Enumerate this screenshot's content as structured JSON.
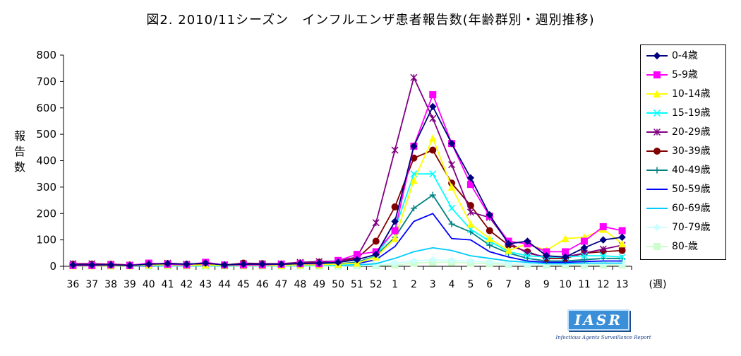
{
  "chart_data": {
    "type": "line",
    "title": "図2. 2010/11シーズン　インフルエンザ患者報告数(年齢群別・週別推移)",
    "ylabel": "報告数",
    "xlabel": "(週)",
    "ylim": [
      0,
      800
    ],
    "yticks": [
      0,
      100,
      200,
      300,
      400,
      500,
      600,
      700,
      800
    ],
    "categories": [
      "36",
      "37",
      "38",
      "39",
      "40",
      "41",
      "42",
      "43",
      "44",
      "45",
      "46",
      "47",
      "48",
      "49",
      "50",
      "51",
      "52",
      "1",
      "2",
      "3",
      "4",
      "5",
      "6",
      "7",
      "8",
      "9",
      "10",
      "11",
      "12",
      "13"
    ],
    "grid": false,
    "legend_position": "right",
    "series": [
      {
        "name": "0-4歳",
        "color": "#000080",
        "marker": "diamond",
        "values": [
          5,
          5,
          5,
          3,
          8,
          10,
          8,
          12,
          5,
          8,
          8,
          8,
          10,
          12,
          15,
          25,
          45,
          170,
          455,
          605,
          465,
          335,
          195,
          85,
          95,
          40,
          35,
          70,
          100,
          110
        ]
      },
      {
        "name": "5-9歳",
        "color": "#ff00ff",
        "marker": "square",
        "values": [
          3,
          3,
          5,
          3,
          12,
          8,
          5,
          15,
          5,
          5,
          5,
          8,
          10,
          10,
          22,
          45,
          55,
          135,
          455,
          650,
          465,
          310,
          190,
          95,
          85,
          55,
          55,
          95,
          150,
          135
        ]
      },
      {
        "name": "10-14歳",
        "color": "#ffff00",
        "marker": "triangle",
        "values": [
          2,
          2,
          2,
          2,
          5,
          5,
          3,
          5,
          3,
          3,
          3,
          3,
          5,
          5,
          8,
          12,
          35,
          105,
          325,
          485,
          300,
          160,
          105,
          60,
          85,
          60,
          105,
          110,
          140,
          85
        ]
      },
      {
        "name": "15-19歳",
        "color": "#00ffff",
        "marker": "x",
        "values": [
          2,
          2,
          2,
          2,
          3,
          3,
          2,
          3,
          2,
          2,
          2,
          2,
          3,
          3,
          5,
          10,
          40,
          140,
          350,
          350,
          220,
          140,
          95,
          55,
          40,
          35,
          35,
          40,
          40,
          35
        ]
      },
      {
        "name": "20-29歳",
        "color": "#800080",
        "marker": "star",
        "values": [
          10,
          10,
          8,
          5,
          8,
          12,
          8,
          12,
          5,
          10,
          10,
          10,
          15,
          18,
          20,
          35,
          165,
          440,
          715,
          560,
          385,
          205,
          185,
          90,
          50,
          35,
          35,
          50,
          65,
          80
        ]
      },
      {
        "name": "30-39歳",
        "color": "#800000",
        "marker": "circle",
        "values": [
          8,
          8,
          8,
          5,
          8,
          10,
          8,
          10,
          5,
          12,
          10,
          8,
          12,
          15,
          20,
          30,
          95,
          225,
          410,
          440,
          315,
          230,
          135,
          80,
          55,
          30,
          30,
          50,
          55,
          60
        ]
      },
      {
        "name": "40-49歳",
        "color": "#008080",
        "marker": "plus",
        "values": [
          3,
          3,
          3,
          3,
          3,
          5,
          3,
          5,
          3,
          5,
          5,
          5,
          5,
          8,
          10,
          15,
          40,
          110,
          220,
          270,
          160,
          130,
          80,
          50,
          30,
          20,
          20,
          25,
          30,
          30
        ]
      },
      {
        "name": "50-59歳",
        "color": "#0000ff",
        "marker": "none",
        "values": [
          2,
          2,
          2,
          2,
          2,
          3,
          2,
          3,
          2,
          3,
          3,
          3,
          3,
          5,
          5,
          10,
          25,
          75,
          170,
          200,
          105,
          100,
          55,
          35,
          20,
          15,
          15,
          18,
          20,
          20
        ]
      },
      {
        "name": "60-69歳",
        "color": "#00ccff",
        "marker": "none",
        "values": [
          1,
          1,
          1,
          1,
          1,
          2,
          1,
          2,
          1,
          2,
          2,
          2,
          2,
          3,
          3,
          5,
          10,
          30,
          55,
          70,
          60,
          40,
          30,
          20,
          15,
          10,
          10,
          12,
          12,
          12
        ]
      },
      {
        "name": "70-79歳",
        "color": "#ccffff",
        "marker": "diamond",
        "values": [
          1,
          1,
          1,
          1,
          1,
          1,
          1,
          1,
          1,
          1,
          1,
          1,
          1,
          2,
          2,
          3,
          5,
          12,
          20,
          25,
          22,
          20,
          15,
          10,
          8,
          8,
          8,
          10,
          10,
          10
        ]
      },
      {
        "name": "80-歳",
        "color": "#ccffcc",
        "marker": "square",
        "values": [
          1,
          1,
          1,
          1,
          1,
          1,
          1,
          1,
          1,
          1,
          1,
          1,
          1,
          1,
          1,
          2,
          3,
          5,
          12,
          15,
          15,
          12,
          10,
          8,
          8,
          5,
          5,
          5,
          5,
          5
        ]
      }
    ]
  },
  "logo": {
    "text": "IASR",
    "subtitle": "Infectious Agents Surveillance Report"
  }
}
